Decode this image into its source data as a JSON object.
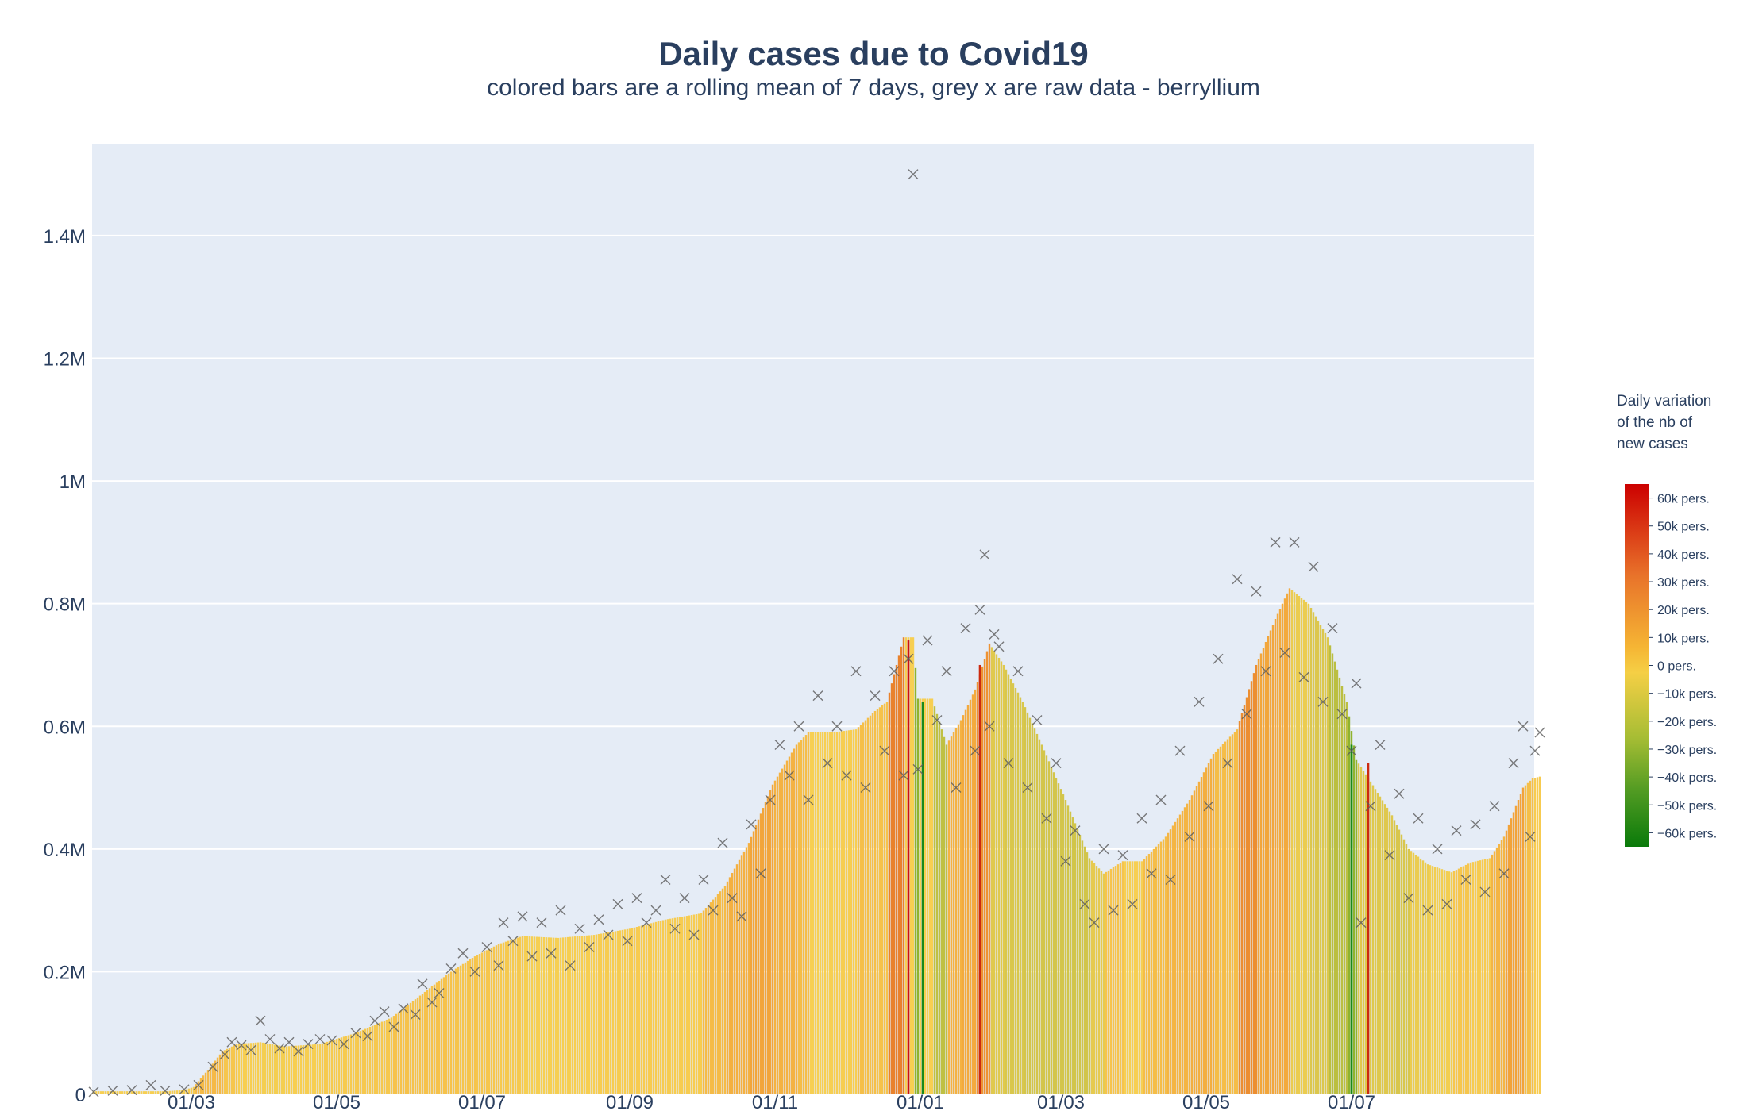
{
  "chart_data": {
    "type": "bar",
    "title": "Daily cases due to Covid19",
    "subtitle": "colored bars are a rolling mean of 7 days, grey x are raw data - berryllium",
    "xlabel": "",
    "ylabel": "",
    "ylim": [
      0,
      1550000
    ],
    "grid": true,
    "x_tick_labels": [
      "01/03",
      "01/05",
      "01/07",
      "01/09",
      "01/11",
      "01/01",
      "01/03",
      "01/05",
      "01/07"
    ],
    "y_tick_labels": [
      "0",
      "0.2M",
      "0.4M",
      "0.6M",
      "0.8M",
      "1M",
      "1.2M",
      "1.4M"
    ],
    "y_tick_values": [
      0,
      200000,
      400000,
      600000,
      800000,
      1000000,
      1200000,
      1400000
    ],
    "x_tick_days": [
      41,
      102,
      163,
      225,
      286,
      347,
      406,
      467,
      528
    ],
    "x_start_date": "2020-01-20",
    "series": [
      {
        "type": "bar",
        "description": "7-day rolling mean, colored by daily variation",
        "points": [
          [
            0,
            5000
          ],
          [
            30,
            5000
          ],
          [
            38,
            7000
          ],
          [
            42,
            12000
          ],
          [
            48,
            40000
          ],
          [
            54,
            70000
          ],
          [
            60,
            82000
          ],
          [
            70,
            85000
          ],
          [
            80,
            78000
          ],
          [
            95,
            82000
          ],
          [
            110,
            100000
          ],
          [
            125,
            125000
          ],
          [
            135,
            155000
          ],
          [
            150,
            200000
          ],
          [
            160,
            225000
          ],
          [
            170,
            245000
          ],
          [
            180,
            258000
          ],
          [
            195,
            255000
          ],
          [
            210,
            260000
          ],
          [
            225,
            270000
          ],
          [
            240,
            285000
          ],
          [
            255,
            295000
          ],
          [
            265,
            340000
          ],
          [
            275,
            410000
          ],
          [
            285,
            505000
          ],
          [
            295,
            570000
          ],
          [
            300,
            590000
          ],
          [
            310,
            590000
          ],
          [
            320,
            595000
          ],
          [
            328,
            625000
          ],
          [
            333,
            640000
          ],
          [
            340,
            745000
          ],
          [
            344,
            745000
          ],
          [
            346,
            645000
          ],
          [
            352,
            645000
          ],
          [
            358,
            570000
          ],
          [
            364,
            610000
          ],
          [
            370,
            660000
          ],
          [
            376,
            735000
          ],
          [
            382,
            700000
          ],
          [
            390,
            640000
          ],
          [
            398,
            570000
          ],
          [
            408,
            480000
          ],
          [
            418,
            385000
          ],
          [
            424,
            360000
          ],
          [
            432,
            380000
          ],
          [
            440,
            380000
          ],
          [
            450,
            420000
          ],
          [
            460,
            480000
          ],
          [
            470,
            555000
          ],
          [
            480,
            595000
          ],
          [
            488,
            700000
          ],
          [
            496,
            775000
          ],
          [
            502,
            825000
          ],
          [
            510,
            800000
          ],
          [
            518,
            745000
          ],
          [
            526,
            640000
          ],
          [
            530,
            545000
          ],
          [
            536,
            510000
          ],
          [
            545,
            455000
          ],
          [
            552,
            400000
          ],
          [
            560,
            375000
          ],
          [
            570,
            362000
          ],
          [
            578,
            378000
          ],
          [
            586,
            385000
          ],
          [
            592,
            420000
          ],
          [
            600,
            500000
          ],
          [
            604,
            515000
          ],
          [
            607,
            518000
          ]
        ],
        "highlighted_bars": [
          [
            342,
            740000,
            "#cc1010"
          ],
          [
            348,
            640000,
            "#1a8a1a"
          ],
          [
            372,
            700000,
            "#cc2a10"
          ],
          [
            528,
            570000,
            "#1a8a1a"
          ],
          [
            535,
            540000,
            "#cc2a10"
          ]
        ]
      },
      {
        "type": "scatter",
        "name": "raw data",
        "marker": "x",
        "points": [
          [
            0,
            4000
          ],
          [
            8,
            6000
          ],
          [
            16,
            7000
          ],
          [
            24,
            15000
          ],
          [
            30,
            6000
          ],
          [
            38,
            8000
          ],
          [
            44,
            15000
          ],
          [
            50,
            45000
          ],
          [
            55,
            65000
          ],
          [
            58,
            85000
          ],
          [
            62,
            80000
          ],
          [
            66,
            72000
          ],
          [
            70,
            120000
          ],
          [
            74,
            90000
          ],
          [
            78,
            75000
          ],
          [
            82,
            85000
          ],
          [
            86,
            70000
          ],
          [
            90,
            82000
          ],
          [
            95,
            90000
          ],
          [
            100,
            88000
          ],
          [
            105,
            82000
          ],
          [
            110,
            100000
          ],
          [
            115,
            95000
          ],
          [
            118,
            120000
          ],
          [
            122,
            135000
          ],
          [
            126,
            110000
          ],
          [
            130,
            140000
          ],
          [
            135,
            130000
          ],
          [
            138,
            180000
          ],
          [
            142,
            150000
          ],
          [
            145,
            165000
          ],
          [
            150,
            205000
          ],
          [
            155,
            230000
          ],
          [
            160,
            200000
          ],
          [
            165,
            240000
          ],
          [
            170,
            210000
          ],
          [
            172,
            280000
          ],
          [
            176,
            250000
          ],
          [
            180,
            290000
          ],
          [
            184,
            225000
          ],
          [
            188,
            280000
          ],
          [
            192,
            230000
          ],
          [
            196,
            300000
          ],
          [
            200,
            210000
          ],
          [
            204,
            270000
          ],
          [
            208,
            240000
          ],
          [
            212,
            285000
          ],
          [
            216,
            260000
          ],
          [
            220,
            310000
          ],
          [
            224,
            250000
          ],
          [
            228,
            320000
          ],
          [
            232,
            280000
          ],
          [
            236,
            300000
          ],
          [
            240,
            350000
          ],
          [
            244,
            270000
          ],
          [
            248,
            320000
          ],
          [
            252,
            260000
          ],
          [
            256,
            350000
          ],
          [
            260,
            300000
          ],
          [
            264,
            410000
          ],
          [
            268,
            320000
          ],
          [
            272,
            290000
          ],
          [
            276,
            440000
          ],
          [
            280,
            360000
          ],
          [
            284,
            480000
          ],
          [
            288,
            570000
          ],
          [
            292,
            520000
          ],
          [
            296,
            600000
          ],
          [
            300,
            480000
          ],
          [
            304,
            650000
          ],
          [
            308,
            540000
          ],
          [
            312,
            600000
          ],
          [
            316,
            520000
          ],
          [
            320,
            690000
          ],
          [
            324,
            500000
          ],
          [
            328,
            650000
          ],
          [
            332,
            560000
          ],
          [
            336,
            690000
          ],
          [
            340,
            520000
          ],
          [
            342,
            710000
          ],
          [
            344,
            1500000
          ],
          [
            346,
            530000
          ],
          [
            350,
            740000
          ],
          [
            354,
            610000
          ],
          [
            358,
            690000
          ],
          [
            362,
            500000
          ],
          [
            366,
            760000
          ],
          [
            370,
            560000
          ],
          [
            372,
            790000
          ],
          [
            374,
            880000
          ],
          [
            376,
            600000
          ],
          [
            378,
            750000
          ],
          [
            380,
            730000
          ],
          [
            384,
            540000
          ],
          [
            388,
            690000
          ],
          [
            392,
            500000
          ],
          [
            396,
            610000
          ],
          [
            400,
            450000
          ],
          [
            404,
            540000
          ],
          [
            408,
            380000
          ],
          [
            412,
            430000
          ],
          [
            416,
            310000
          ],
          [
            420,
            280000
          ],
          [
            424,
            400000
          ],
          [
            428,
            300000
          ],
          [
            432,
            390000
          ],
          [
            436,
            310000
          ],
          [
            440,
            450000
          ],
          [
            444,
            360000
          ],
          [
            448,
            480000
          ],
          [
            452,
            350000
          ],
          [
            456,
            560000
          ],
          [
            460,
            420000
          ],
          [
            464,
            640000
          ],
          [
            468,
            470000
          ],
          [
            472,
            710000
          ],
          [
            476,
            540000
          ],
          [
            480,
            840000
          ],
          [
            484,
            620000
          ],
          [
            488,
            820000
          ],
          [
            492,
            690000
          ],
          [
            496,
            900000
          ],
          [
            500,
            720000
          ],
          [
            504,
            900000
          ],
          [
            508,
            680000
          ],
          [
            512,
            860000
          ],
          [
            516,
            640000
          ],
          [
            520,
            760000
          ],
          [
            524,
            620000
          ],
          [
            528,
            560000
          ],
          [
            530,
            670000
          ],
          [
            532,
            280000
          ],
          [
            536,
            470000
          ],
          [
            540,
            570000
          ],
          [
            544,
            390000
          ],
          [
            548,
            490000
          ],
          [
            552,
            320000
          ],
          [
            556,
            450000
          ],
          [
            560,
            300000
          ],
          [
            564,
            400000
          ],
          [
            568,
            310000
          ],
          [
            572,
            430000
          ],
          [
            576,
            350000
          ],
          [
            580,
            440000
          ],
          [
            584,
            330000
          ],
          [
            588,
            470000
          ],
          [
            592,
            360000
          ],
          [
            596,
            540000
          ],
          [
            600,
            600000
          ],
          [
            603,
            420000
          ],
          [
            605,
            560000
          ],
          [
            607,
            590000
          ]
        ]
      }
    ],
    "colorbar": {
      "title": "Daily variation of the nb of new cases",
      "title_lines": [
        "Daily variation",
        "of the nb of",
        "new cases"
      ],
      "tick_labels": [
        "60k pers.",
        "50k pers.",
        "40k pers.",
        "30k pers.",
        "20k pers.",
        "10k pers.",
        "0 pers.",
        "−10k pers.",
        "−20k pers.",
        "−30k pers.",
        "−40k pers.",
        "−50k pers.",
        "−60k pers."
      ],
      "tick_values": [
        60000,
        50000,
        40000,
        30000,
        20000,
        10000,
        0,
        -10000,
        -20000,
        -30000,
        -40000,
        -50000,
        -60000
      ],
      "range": [
        -65000,
        65000
      ],
      "colors": [
        "#cc0000",
        "#e4661e",
        "#f5a623",
        "#f7d24a",
        "#9fba2f",
        "#4a9a1f",
        "#0a7a0a"
      ]
    }
  }
}
